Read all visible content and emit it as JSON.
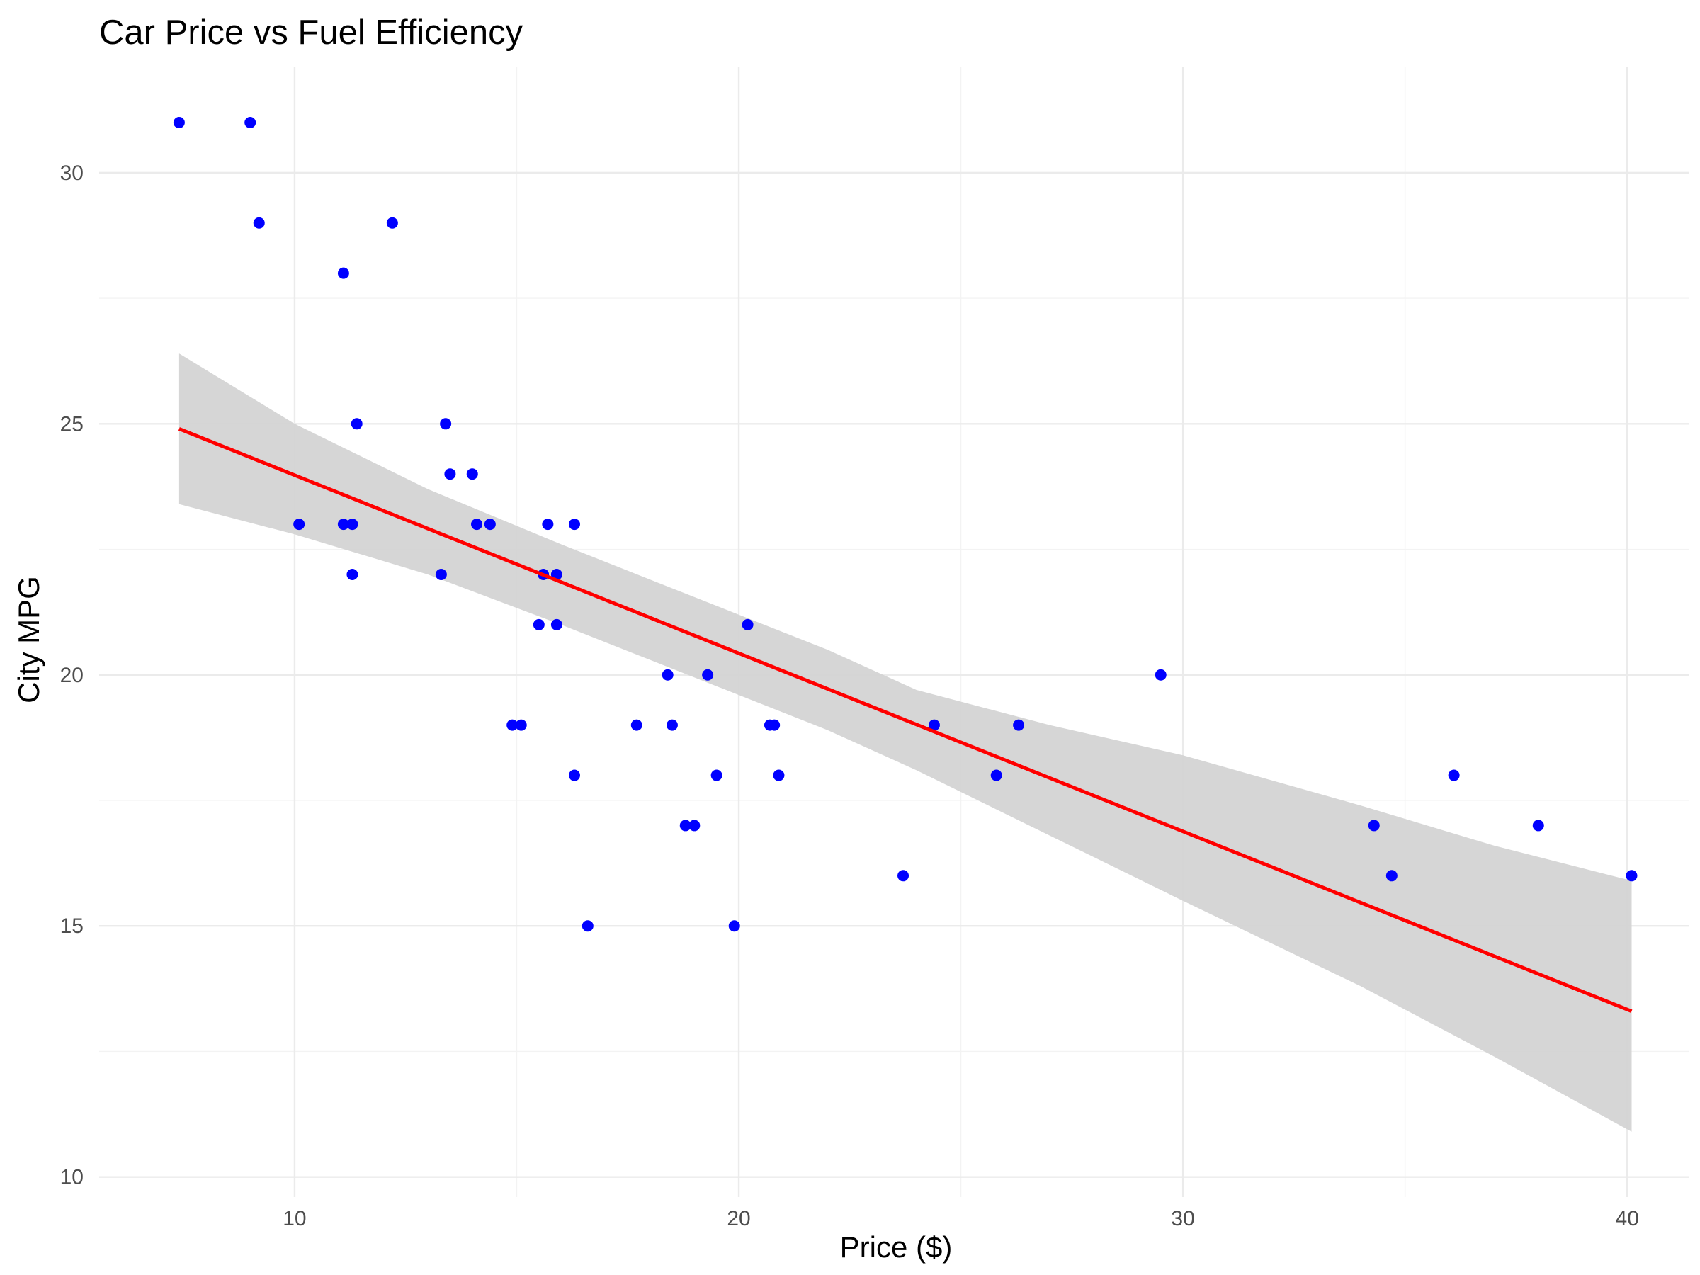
{
  "chart_data": {
    "type": "scatter",
    "title": "Car Price vs Fuel Efficiency",
    "xlabel": "Price ($)",
    "ylabel": "City MPG",
    "xlim": [
      5.6,
      41.4
    ],
    "ylim": [
      9.6,
      32.1
    ],
    "x_ticks": [
      10,
      20,
      30,
      40
    ],
    "y_ticks": [
      10,
      15,
      20,
      25,
      30
    ],
    "x_minor_ticks": [
      15,
      25,
      35
    ],
    "y_minor_ticks": [
      12.5,
      17.5,
      22.5,
      27.5
    ],
    "grid": true,
    "legend": "none",
    "point_color": "#0000ff",
    "line_color": "#ff0000",
    "band_color": "#d3d3d3",
    "points": [
      {
        "x": 7.4,
        "y": 31
      },
      {
        "x": 9.0,
        "y": 31
      },
      {
        "x": 9.2,
        "y": 29
      },
      {
        "x": 12.2,
        "y": 29
      },
      {
        "x": 11.1,
        "y": 28
      },
      {
        "x": 11.4,
        "y": 25
      },
      {
        "x": 13.4,
        "y": 25
      },
      {
        "x": 13.5,
        "y": 24
      },
      {
        "x": 14.0,
        "y": 24
      },
      {
        "x": 10.1,
        "y": 23
      },
      {
        "x": 11.1,
        "y": 23
      },
      {
        "x": 11.3,
        "y": 23
      },
      {
        "x": 14.1,
        "y": 23
      },
      {
        "x": 14.4,
        "y": 23
      },
      {
        "x": 15.7,
        "y": 23
      },
      {
        "x": 16.3,
        "y": 23
      },
      {
        "x": 11.3,
        "y": 22
      },
      {
        "x": 13.3,
        "y": 22
      },
      {
        "x": 15.6,
        "y": 22
      },
      {
        "x": 15.9,
        "y": 22
      },
      {
        "x": 15.5,
        "y": 21
      },
      {
        "x": 15.9,
        "y": 21
      },
      {
        "x": 20.2,
        "y": 21
      },
      {
        "x": 18.4,
        "y": 20
      },
      {
        "x": 19.3,
        "y": 20
      },
      {
        "x": 29.5,
        "y": 20
      },
      {
        "x": 14.9,
        "y": 19
      },
      {
        "x": 15.1,
        "y": 19
      },
      {
        "x": 17.7,
        "y": 19
      },
      {
        "x": 18.5,
        "y": 19
      },
      {
        "x": 20.7,
        "y": 19
      },
      {
        "x": 20.8,
        "y": 19
      },
      {
        "x": 24.4,
        "y": 19
      },
      {
        "x": 26.3,
        "y": 19
      },
      {
        "x": 16.3,
        "y": 18
      },
      {
        "x": 19.5,
        "y": 18
      },
      {
        "x": 20.9,
        "y": 18
      },
      {
        "x": 25.8,
        "y": 18
      },
      {
        "x": 36.1,
        "y": 18
      },
      {
        "x": 18.8,
        "y": 17
      },
      {
        "x": 19.0,
        "y": 17
      },
      {
        "x": 34.3,
        "y": 17
      },
      {
        "x": 38.0,
        "y": 17
      },
      {
        "x": 23.7,
        "y": 16
      },
      {
        "x": 34.7,
        "y": 16
      },
      {
        "x": 40.1,
        "y": 16
      },
      {
        "x": 16.6,
        "y": 15
      },
      {
        "x": 19.9,
        "y": 15
      }
    ],
    "trend_line": {
      "x": [
        7.4,
        40.1
      ],
      "y": [
        24.9,
        13.3
      ]
    },
    "confidence_band": {
      "x": [
        7.4,
        10,
        13,
        16,
        18,
        20,
        22,
        24,
        27,
        30,
        34,
        37,
        40.1
      ],
      "upper": [
        26.4,
        25.0,
        23.7,
        22.6,
        21.9,
        21.2,
        20.5,
        19.7,
        19.0,
        18.4,
        17.4,
        16.6,
        15.9
      ],
      "lower": [
        23.4,
        22.8,
        22.0,
        21.0,
        20.3,
        19.6,
        18.9,
        18.1,
        16.8,
        15.5,
        13.8,
        12.4,
        10.9
      ]
    }
  }
}
